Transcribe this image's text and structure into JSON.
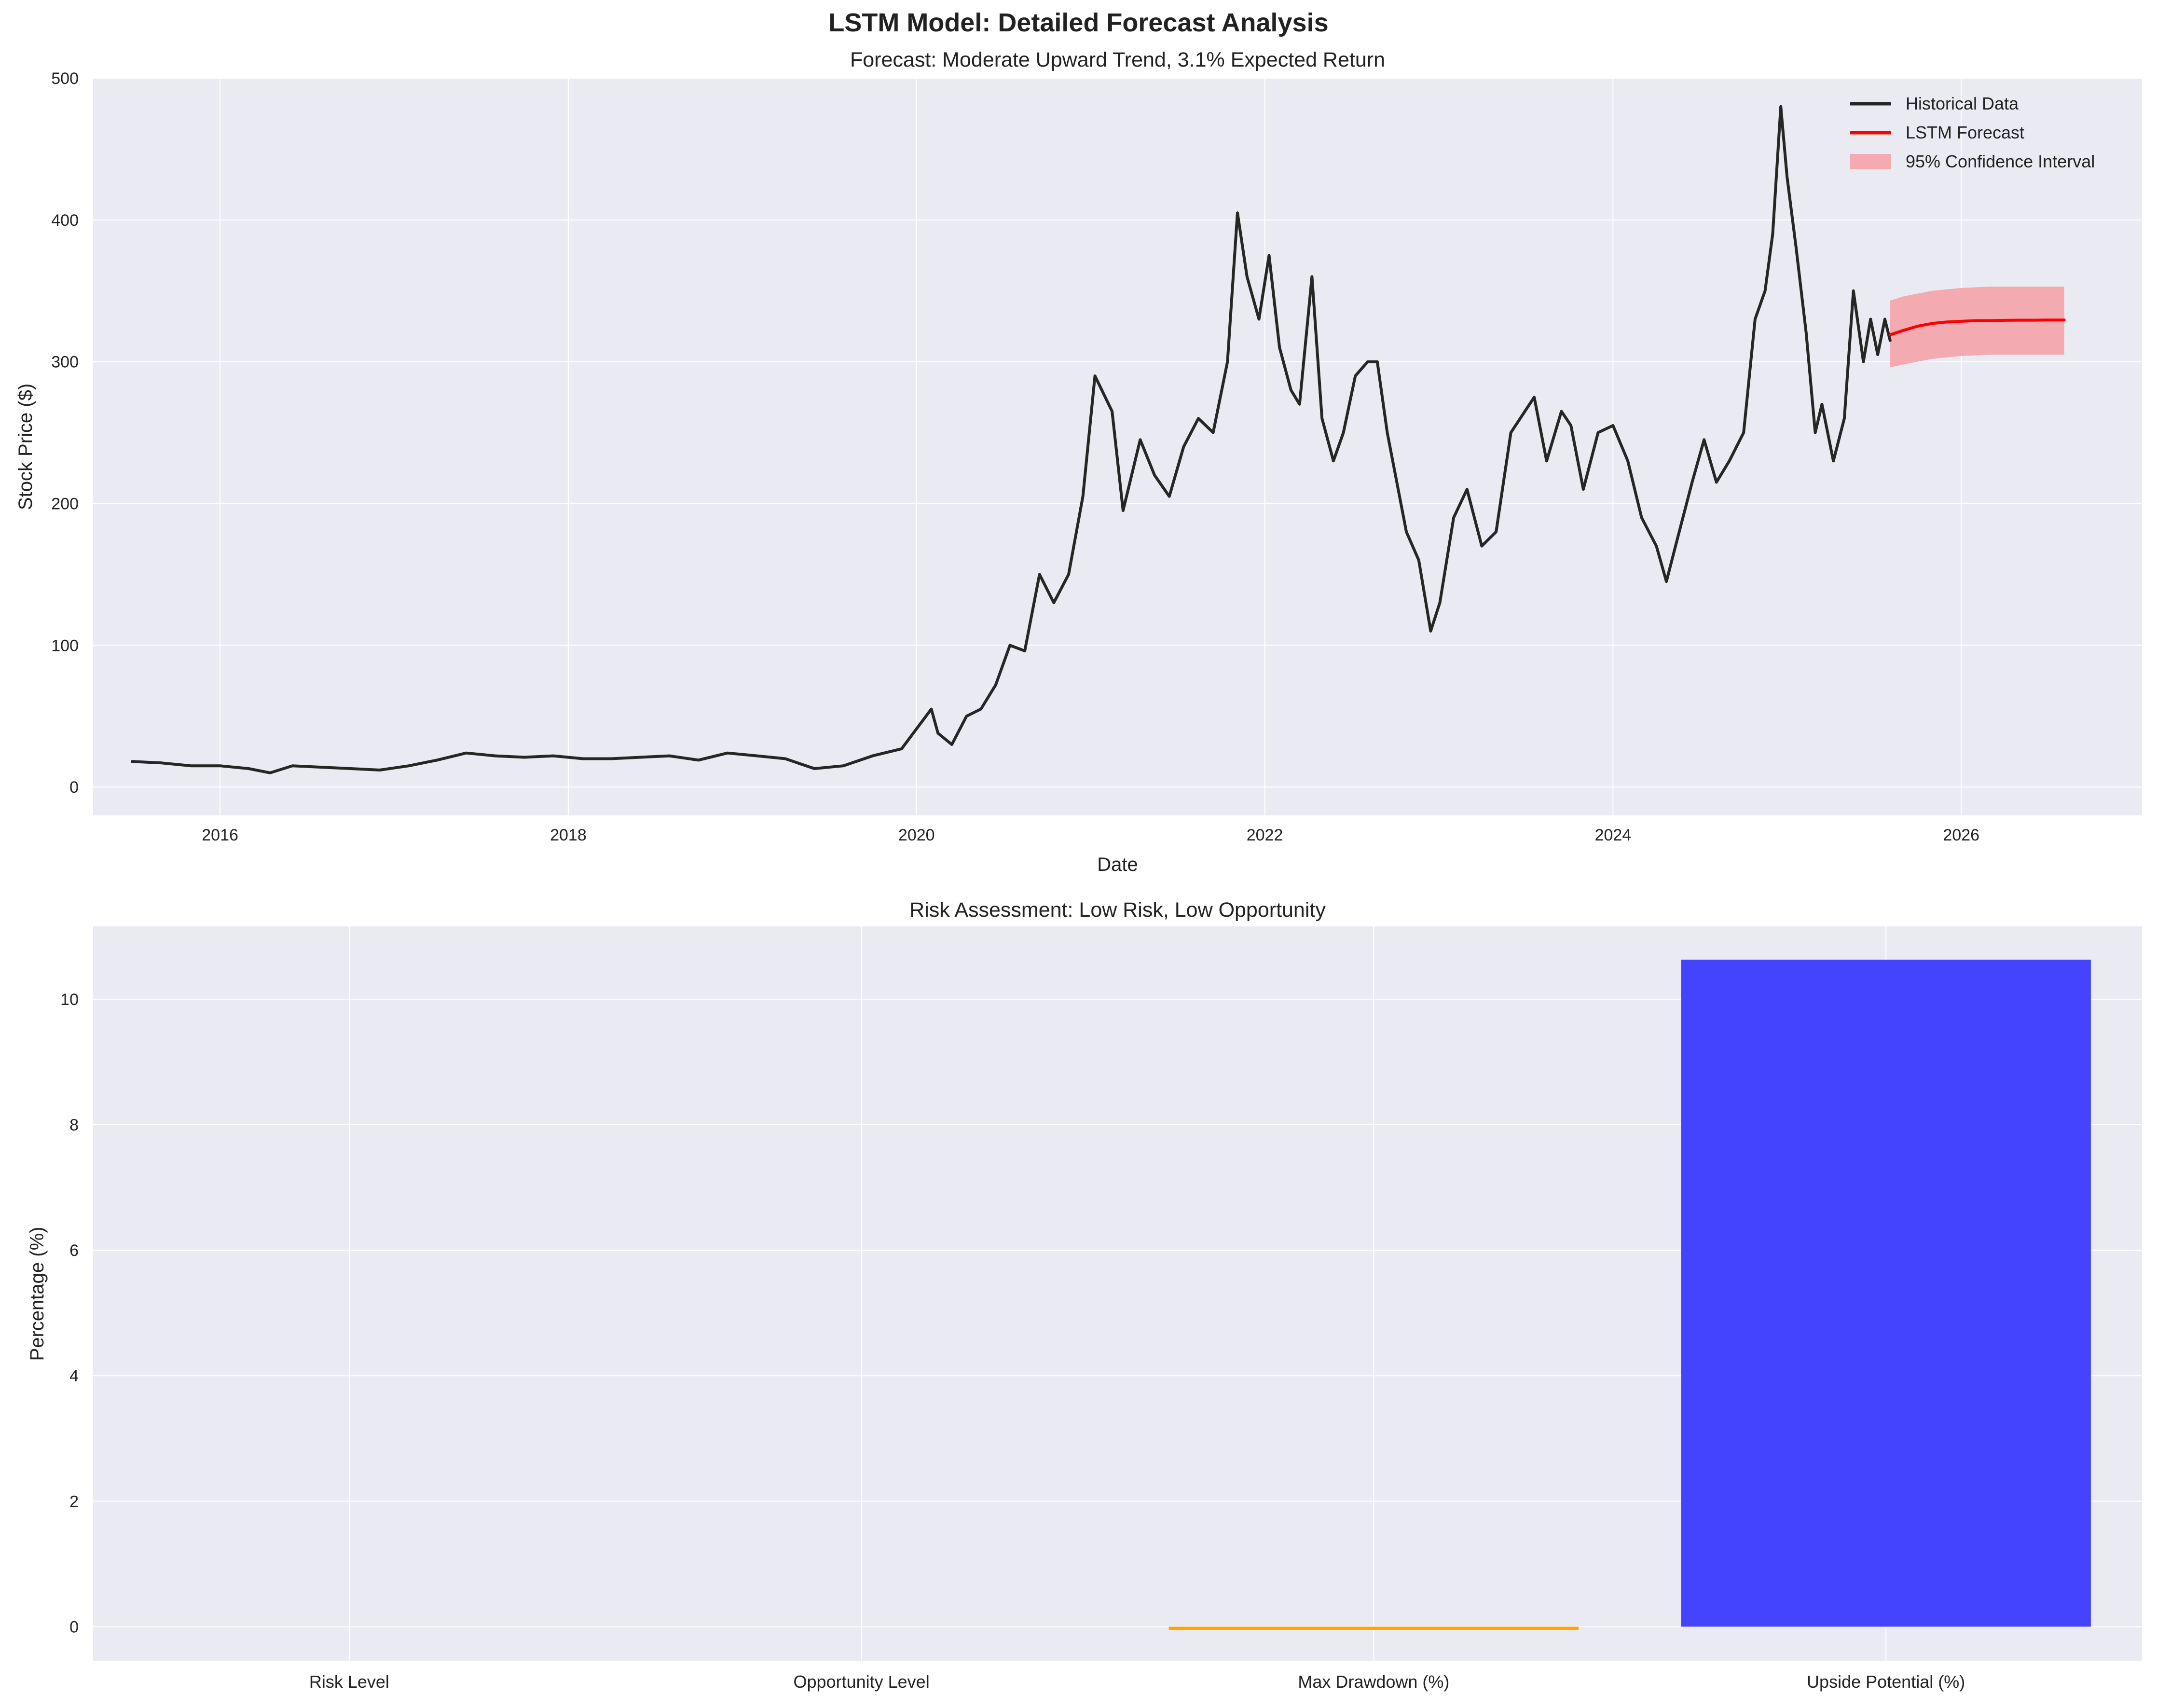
{
  "figure": {
    "title": "LSTM Model: Detailed Forecast Analysis"
  },
  "colors": {
    "axes_bg": "#eaeaf2",
    "grid": "#ffffff",
    "historical": "#262626",
    "forecast": "#ff0000",
    "ci_fill": "#f4a3aa",
    "bar_risk": "#ff4444",
    "bar_opportunity": "#44aa44",
    "bar_drawdown": "#ffa500",
    "bar_upside": "#4444ff"
  },
  "chart_data": [
    {
      "type": "line",
      "title": "Forecast: Moderate Upward Trend, 3.1% Expected Return",
      "xlabel": "Date",
      "ylabel": "Stock Price ($)",
      "x_ticks": [
        "2016",
        "2018",
        "2020",
        "2022",
        "2024",
        "2026"
      ],
      "y_ticks": [
        "0",
        "100",
        "200",
        "300",
        "400",
        "500"
      ],
      "xlim": [
        "2015-04-10",
        "2027-01-15"
      ],
      "ylim": [
        -20,
        500
      ],
      "grid": true,
      "legend_position": "top-right",
      "legend": [
        "Historical Data",
        "LSTM Forecast",
        "95% Confidence Interval"
      ],
      "series": [
        {
          "name": "Historical Data",
          "x": [
            "2015-07-01",
            "2015-09-01",
            "2015-11-01",
            "2016-01-01",
            "2016-03-01",
            "2016-04-15",
            "2016-06-01",
            "2016-08-01",
            "2016-10-01",
            "2016-12-01",
            "2017-02-01",
            "2017-04-01",
            "2017-06-01",
            "2017-08-01",
            "2017-10-01",
            "2017-12-01",
            "2018-02-01",
            "2018-04-01",
            "2018-06-01",
            "2018-08-01",
            "2018-10-01",
            "2018-12-01",
            "2019-02-01",
            "2019-04-01",
            "2019-06-01",
            "2019-08-01",
            "2019-10-01",
            "2019-12-01",
            "2020-02-01",
            "2020-02-15",
            "2020-03-15",
            "2020-04-15",
            "2020-05-15",
            "2020-06-15",
            "2020-07-15",
            "2020-08-15",
            "2020-09-15",
            "2020-10-15",
            "2020-11-15",
            "2020-12-15",
            "2021-01-10",
            "2021-02-15",
            "2021-03-10",
            "2021-04-15",
            "2021-05-15",
            "2021-06-15",
            "2021-07-15",
            "2021-08-15",
            "2021-09-15",
            "2021-10-15",
            "2021-11-05",
            "2021-11-25",
            "2021-12-20",
            "2022-01-10",
            "2022-02-01",
            "2022-02-25",
            "2022-03-15",
            "2022-04-10",
            "2022-05-01",
            "2022-05-25",
            "2022-06-15",
            "2022-07-10",
            "2022-08-05",
            "2022-08-25",
            "2022-09-15",
            "2022-10-05",
            "2022-10-25",
            "2022-11-20",
            "2022-12-15",
            "2023-01-03",
            "2023-02-01",
            "2023-03-01",
            "2023-04-01",
            "2023-05-01",
            "2023-06-01",
            "2023-07-20",
            "2023-08-15",
            "2023-09-15",
            "2023-10-05",
            "2023-10-31",
            "2023-12-01",
            "2024-01-01",
            "2024-02-01",
            "2024-03-01",
            "2024-04-01",
            "2024-04-22",
            "2024-05-15",
            "2024-06-15",
            "2024-07-10",
            "2024-08-05",
            "2024-09-01",
            "2024-10-01",
            "2024-10-25",
            "2024-11-15",
            "2024-12-01",
            "2024-12-18",
            "2025-01-01",
            "2025-01-20",
            "2025-02-10",
            "2025-03-01",
            "2025-03-15",
            "2025-04-08",
            "2025-05-01",
            "2025-05-20",
            "2025-06-10",
            "2025-06-25",
            "2025-07-10",
            "2025-07-25",
            "2025-08-05"
          ],
          "y": [
            18,
            17,
            15,
            15,
            13,
            10,
            15,
            14,
            13,
            12,
            15,
            19,
            24,
            22,
            21,
            22,
            20,
            20,
            21,
            22,
            19,
            24,
            22,
            20,
            13,
            15,
            22,
            27,
            55,
            38,
            30,
            50,
            55,
            72,
            100,
            96,
            150,
            130,
            150,
            205,
            290,
            265,
            195,
            245,
            220,
            205,
            240,
            260,
            250,
            300,
            405,
            360,
            330,
            375,
            310,
            280,
            270,
            360,
            260,
            230,
            250,
            290,
            300,
            300,
            250,
            215,
            180,
            160,
            110,
            130,
            190,
            210,
            170,
            180,
            250,
            275,
            230,
            265,
            255,
            210,
            250,
            255,
            230,
            190,
            170,
            145,
            175,
            215,
            245,
            215,
            230,
            250,
            330,
            350,
            390,
            480,
            430,
            380,
            320,
            250,
            270,
            230,
            260,
            350,
            300,
            330,
            305,
            330,
            315
          ]
        },
        {
          "name": "LSTM Forecast",
          "x": [
            "2025-08-05",
            "2025-09-01",
            "2025-10-01",
            "2025-11-01",
            "2025-12-01",
            "2026-01-01",
            "2026-02-01",
            "2026-03-01",
            "2026-04-01",
            "2026-05-01",
            "2026-06-01",
            "2026-07-01",
            "2026-08-05"
          ],
          "y": [
            319,
            322,
            325,
            327,
            328,
            328.5,
            329,
            329,
            329.2,
            329.3,
            329.3,
            329.4,
            329.4
          ]
        }
      ],
      "confidence_interval": {
        "name": "95% Confidence Interval",
        "x": [
          "2025-08-05",
          "2025-09-01",
          "2025-10-01",
          "2025-11-01",
          "2025-12-01",
          "2026-01-01",
          "2026-02-01",
          "2026-03-01",
          "2026-04-01",
          "2026-05-01",
          "2026-06-01",
          "2026-07-01",
          "2026-08-05"
        ],
        "upper": [
          343,
          346,
          348,
          350,
          351,
          352,
          352.5,
          353,
          353,
          353,
          353,
          353,
          353
        ],
        "lower": [
          296,
          298,
          300,
          302,
          303,
          304,
          304.5,
          305,
          305,
          305,
          305,
          305,
          305
        ]
      }
    },
    {
      "type": "bar",
      "title": "Risk Assessment: Low Risk, Low Opportunity",
      "xlabel": "",
      "ylabel": "Percentage (%)",
      "categories": [
        "Risk Level",
        "Opportunity Level",
        "Max Drawdown (%)",
        "Upside Potential (%)"
      ],
      "values": [
        0,
        0,
        -0.05,
        10.63
      ],
      "y_ticks": [
        "0",
        "2",
        "4",
        "6",
        "8",
        "10"
      ],
      "ylim": [
        -0.55,
        11.16
      ],
      "grid": true
    }
  ]
}
